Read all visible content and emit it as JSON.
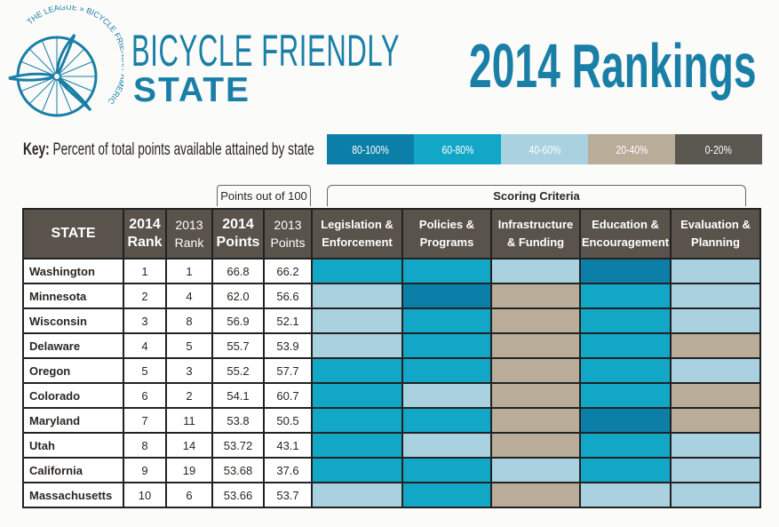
{
  "logo": {
    "arc_text": "THE LEAGUE » BICYCLE FRIENDLY AMERICA"
  },
  "brand": {
    "line1": "BICYCLE FRIENDLY",
    "line2": "STATE"
  },
  "title": "2014 Rankings",
  "key": {
    "label": "Key:",
    "text": "Percent of total points available attained by state",
    "levels": [
      {
        "label": "80-100%",
        "color": "#0b7fa8"
      },
      {
        "label": "60-80%",
        "color": "#13a7c7"
      },
      {
        "label": "40-60%",
        "color": "#a9d1df"
      },
      {
        "label": "20-40%",
        "color": "#b9ac99"
      },
      {
        "label": "0-20%",
        "color": "#5a5650"
      }
    ]
  },
  "points_label": "Points out of 100",
  "scoring_label": "Scoring Criteria",
  "columns": {
    "state": "STATE",
    "rank2014a": "2014",
    "rank2014b": "Rank",
    "rank2013a": "2013",
    "rank2013b": "Rank",
    "pts2014a": "2014",
    "pts2014b": "Points",
    "pts2013a": "2013",
    "pts2013b": "Points",
    "criteria": [
      [
        "Legislation &",
        "Enforcement"
      ],
      [
        "Policies &",
        "Programs"
      ],
      [
        "Infrastructure",
        "& Funding"
      ],
      [
        "Education &",
        "Encouragement"
      ],
      [
        "Evaluation &",
        "Planning"
      ]
    ]
  },
  "rows": [
    {
      "state": "Washington",
      "rank2014": "1",
      "rank2013": "1",
      "pts2014": "66.8",
      "pts2013": "66.2",
      "levels": [
        1,
        1,
        2,
        0,
        2
      ]
    },
    {
      "state": "Minnesota",
      "rank2014": "2",
      "rank2013": "4",
      "pts2014": "62.0",
      "pts2013": "56.6",
      "levels": [
        2,
        0,
        3,
        1,
        2
      ]
    },
    {
      "state": "Wisconsin",
      "rank2014": "3",
      "rank2013": "8",
      "pts2014": "56.9",
      "pts2013": "52.1",
      "levels": [
        2,
        1,
        3,
        1,
        2
      ]
    },
    {
      "state": "Delaware",
      "rank2014": "4",
      "rank2013": "5",
      "pts2014": "55.7",
      "pts2013": "53.9",
      "levels": [
        2,
        1,
        3,
        1,
        3
      ]
    },
    {
      "state": "Oregon",
      "rank2014": "5",
      "rank2013": "3",
      "pts2014": "55.2",
      "pts2013": "57.7",
      "levels": [
        1,
        1,
        3,
        1,
        2
      ]
    },
    {
      "state": "Colorado",
      "rank2014": "6",
      "rank2013": "2",
      "pts2014": "54.1",
      "pts2013": "60.7",
      "levels": [
        1,
        2,
        3,
        1,
        3
      ]
    },
    {
      "state": "Maryland",
      "rank2014": "7",
      "rank2013": "11",
      "pts2014": "53.8",
      "pts2013": "50.5",
      "levels": [
        1,
        1,
        3,
        0,
        3
      ]
    },
    {
      "state": "Utah",
      "rank2014": "8",
      "rank2013": "14",
      "pts2014": "53.72",
      "pts2013": "43.1",
      "levels": [
        1,
        2,
        3,
        1,
        2
      ]
    },
    {
      "state": "California",
      "rank2014": "9",
      "rank2013": "19",
      "pts2014": "53.68",
      "pts2013": "37.6",
      "levels": [
        1,
        1,
        2,
        1,
        2
      ]
    },
    {
      "state": "Massachusetts",
      "rank2014": "10",
      "rank2013": "6",
      "pts2014": "53.66",
      "pts2013": "53.7",
      "levels": [
        2,
        1,
        3,
        2,
        2
      ]
    }
  ]
}
